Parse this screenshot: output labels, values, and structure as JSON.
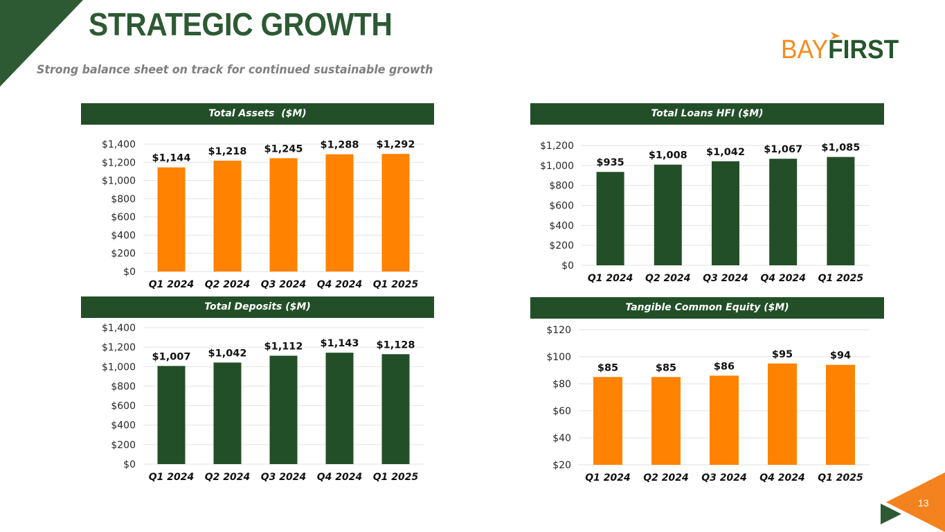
{
  "page": {
    "title": "STRATEGIC GROWTH",
    "subtitle": "Strong balance sheet on track for continued sustainable growth",
    "page_number": "13"
  },
  "logo": {
    "part1": "BAY",
    "part2": "FIRST"
  },
  "colors": {
    "green": "#234f28",
    "orange": "#ff8200",
    "title_green": "#2d5a33",
    "subtitle_gray": "#7f7f7f"
  },
  "chart_data": [
    {
      "id": "total-assets",
      "type": "bar",
      "title": "Total Assets  ($M)",
      "categories": [
        "Q1 2024",
        "Q2 2024",
        "Q3 2024",
        "Q4 2024",
        "Q1 2025"
      ],
      "values": [
        1144,
        1218,
        1245,
        1288,
        1292
      ],
      "labels": [
        "$1,144",
        "$1,218",
        "$1,245",
        "$1,288",
        "$1,292"
      ],
      "ylim": [
        0,
        1400
      ],
      "yticks": [
        0,
        200,
        400,
        600,
        800,
        1000,
        1200,
        1400
      ],
      "ytick_labels": [
        "$0",
        "$200",
        "$400",
        "$600",
        "$800",
        "$1,000",
        "$1,200",
        "$1,400"
      ],
      "color": "#ff8200",
      "grid": true
    },
    {
      "id": "total-loans",
      "type": "bar",
      "title": "Total Loans HFI ($M)",
      "categories": [
        "Q1 2024",
        "Q2 2024",
        "Q3 2024",
        "Q4 2024",
        "Q1 2025"
      ],
      "values": [
        935,
        1008,
        1042,
        1067,
        1085
      ],
      "labels": [
        "$935",
        "$1,008",
        "$1,042",
        "$1,067",
        "$1,085"
      ],
      "ylim": [
        0,
        1200
      ],
      "yticks": [
        0,
        200,
        400,
        600,
        800,
        1000,
        1200
      ],
      "ytick_labels": [
        "$0",
        "$200",
        "$400",
        "$600",
        "$800",
        "$1,000",
        "$1,200"
      ],
      "color": "#234f28",
      "grid": true
    },
    {
      "id": "total-deposits",
      "type": "bar",
      "title": "Total Deposits ($M)",
      "categories": [
        "Q1 2024",
        "Q2 2024",
        "Q3 2024",
        "Q4 2024",
        "Q1 2025"
      ],
      "values": [
        1007,
        1042,
        1112,
        1143,
        1128
      ],
      "labels": [
        "$1,007",
        "$1,042",
        "$1,112",
        "$1,143",
        "$1,128"
      ],
      "ylim": [
        0,
        1400
      ],
      "yticks": [
        0,
        200,
        400,
        600,
        800,
        1000,
        1200,
        1400
      ],
      "ytick_labels": [
        "$0",
        "$200",
        "$400",
        "$600",
        "$800",
        "$1,000",
        "$1,200",
        "$1,400"
      ],
      "color": "#234f28",
      "grid": true
    },
    {
      "id": "tangible-common-equity",
      "type": "bar",
      "title": "Tangible Common Equity ($M)",
      "categories": [
        "Q1 2024",
        "Q2 2024",
        "Q3 2024",
        "Q4 2024",
        "Q1 2025"
      ],
      "values": [
        85,
        85,
        86,
        95,
        94
      ],
      "labels": [
        "$85",
        "$85",
        "$86",
        "$95",
        "$94"
      ],
      "ylim": [
        20,
        120
      ],
      "yticks": [
        20,
        40,
        60,
        80,
        100,
        120
      ],
      "ytick_labels": [
        "$20",
        "$40",
        "$60",
        "$80",
        "$100",
        "$120"
      ],
      "color": "#ff8200",
      "grid": true
    }
  ]
}
